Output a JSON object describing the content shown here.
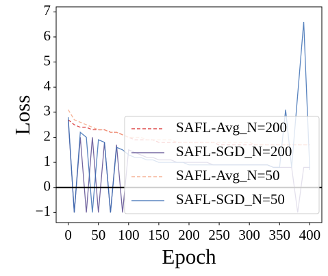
{
  "chart_data": {
    "type": "line",
    "xlabel": "Epoch",
    "ylabel": "Loss",
    "x": [
      0,
      10,
      20,
      30,
      40,
      50,
      60,
      70,
      80,
      90,
      100,
      110,
      120,
      130,
      140,
      150,
      160,
      170,
      180,
      190,
      200,
      210,
      220,
      230,
      240,
      250,
      260,
      270,
      280,
      290,
      300,
      310,
      320,
      330,
      340,
      350,
      360,
      370,
      380,
      390,
      400
    ],
    "series": [
      {
        "name": "SAFL-Avg_N=200",
        "color": "#d62728",
        "dashed": true,
        "values": [
          2.7,
          2.5,
          2.4,
          2.4,
          2.3,
          2.3,
          2.3,
          2.2,
          2.2,
          2.1,
          2.0,
          1.9,
          1.9,
          1.9,
          1.9,
          1.8,
          1.8,
          1.8,
          1.8,
          1.8,
          1.8,
          1.8,
          1.8,
          1.8,
          1.8,
          1.7,
          1.7,
          1.7,
          1.7,
          1.7,
          1.7,
          1.7,
          1.7,
          1.7,
          1.7,
          1.7,
          1.7,
          1.7,
          1.7,
          1.7,
          1.7
        ]
      },
      {
        "name": "SAFL-SGD_N=200",
        "color": "#5b4b8f",
        "dashed": false,
        "values": [
          2.7,
          -1,
          2.0,
          -1,
          2.0,
          -1,
          1.8,
          -1,
          1.7,
          -1,
          1.5,
          1.4,
          1.3,
          1.2,
          1.2,
          1.1,
          1.1,
          1.1,
          1.0,
          1.0,
          1.0,
          1.0,
          1.0,
          1.0,
          0.9,
          0.9,
          0.9,
          0.9,
          0.9,
          0.9,
          0.9,
          0.9,
          0.9,
          0.9,
          0.8,
          0.8,
          0.8,
          0.8,
          -1,
          0.8,
          0.8
        ]
      },
      {
        "name": "SAFL-Avg_N=50",
        "color": "#f4a582",
        "dashed": true,
        "values": [
          3.1,
          2.7,
          2.6,
          2.5,
          2.4,
          2.3,
          2.3,
          2.2,
          2.2,
          2.1,
          2.0,
          2.0,
          2.0,
          1.9,
          1.9,
          1.9,
          1.9,
          1.9,
          1.8,
          1.8,
          1.8,
          1.8,
          1.8,
          1.8,
          1.8,
          1.8,
          1.8,
          1.8,
          1.8,
          1.8,
          1.8,
          1.7,
          1.7,
          1.7,
          1.7,
          1.7,
          1.7,
          1.7,
          1.7,
          1.7,
          1.7
        ]
      },
      {
        "name": "SAFL-SGD_N=50",
        "color": "#3b6db3",
        "dashed": false,
        "values": [
          2.8,
          -1,
          2.2,
          2.0,
          -1,
          1.9,
          1.8,
          -1,
          1.6,
          1.5,
          1.3,
          1.2,
          1.2,
          1.1,
          1.1,
          1.0,
          1.0,
          1.0,
          1.0,
          1.0,
          0.9,
          0.9,
          0.9,
          0.9,
          0.9,
          0.9,
          0.9,
          0.9,
          0.9,
          0.9,
          0.9,
          0.9,
          0.9,
          0.9,
          0.8,
          0.8,
          3.1,
          0.8,
          3.7,
          6.6,
          0.7
        ]
      }
    ],
    "hline": 0,
    "xlim": [
      -20,
      420
    ],
    "ylim": [
      -1.4,
      7.2
    ],
    "xticks": [
      0,
      50,
      100,
      150,
      200,
      250,
      300,
      350,
      400
    ],
    "yticks": [
      {
        "value": -1,
        "label": "−1"
      },
      0,
      1,
      2,
      3,
      4,
      5,
      6,
      7
    ],
    "legend": "lower right"
  }
}
